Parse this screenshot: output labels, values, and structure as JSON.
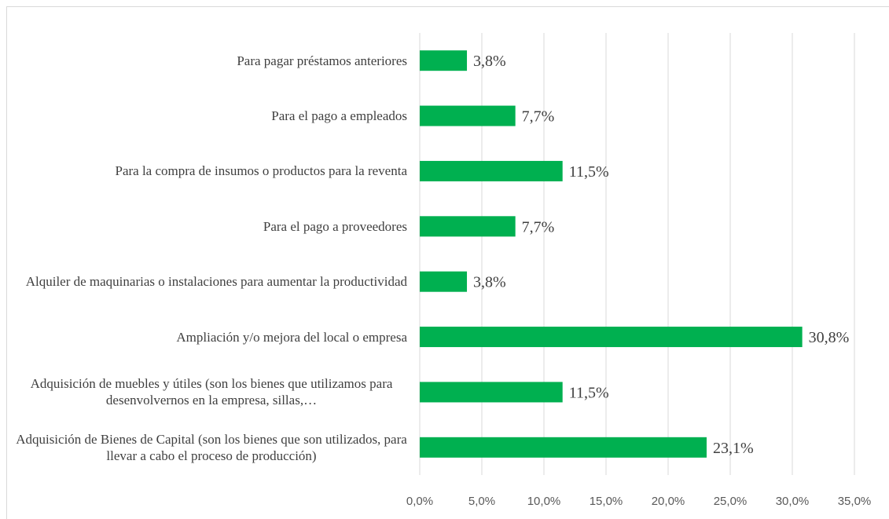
{
  "chart_data": {
    "type": "bar",
    "orientation": "horizontal",
    "categories": [
      "Para pagar préstamos anteriores",
      "Para el pago a empleados",
      "Para la compra de insumos o productos para la reventa",
      "Para el pago a proveedores",
      "Alquiler de maquinarias o instalaciones para aumentar la productividad",
      "Ampliación y/o mejora del local o empresa",
      "Adquisición de muebles y útiles (son los bienes que utilizamos para desenvolvernos en la empresa, sillas,…",
      "Adquisición de Bienes de Capital (son los bienes que son utilizados, para llevar a cabo el proceso de producción)"
    ],
    "values": [
      3.8,
      7.7,
      11.5,
      7.7,
      3.8,
      30.8,
      11.5,
      23.1
    ],
    "value_labels": [
      "3,8%",
      "7,7%",
      "11,5%",
      "7,7%",
      "3,8%",
      "30,8%",
      "11,5%",
      "23,1%"
    ],
    "color": "#00b050",
    "xlim": [
      0,
      35
    ],
    "xticks": [
      {
        "value": 0,
        "label": "0,0%"
      },
      {
        "value": 5,
        "label": "5,0%"
      },
      {
        "value": 10,
        "label": "10,0%"
      },
      {
        "value": 15,
        "label": "15,0%"
      },
      {
        "value": 20,
        "label": "20,0%"
      },
      {
        "value": 25,
        "label": "25,0%"
      },
      {
        "value": 30,
        "label": "30,0%"
      },
      {
        "value": 35,
        "label": "35,0%"
      }
    ],
    "grid": true
  }
}
